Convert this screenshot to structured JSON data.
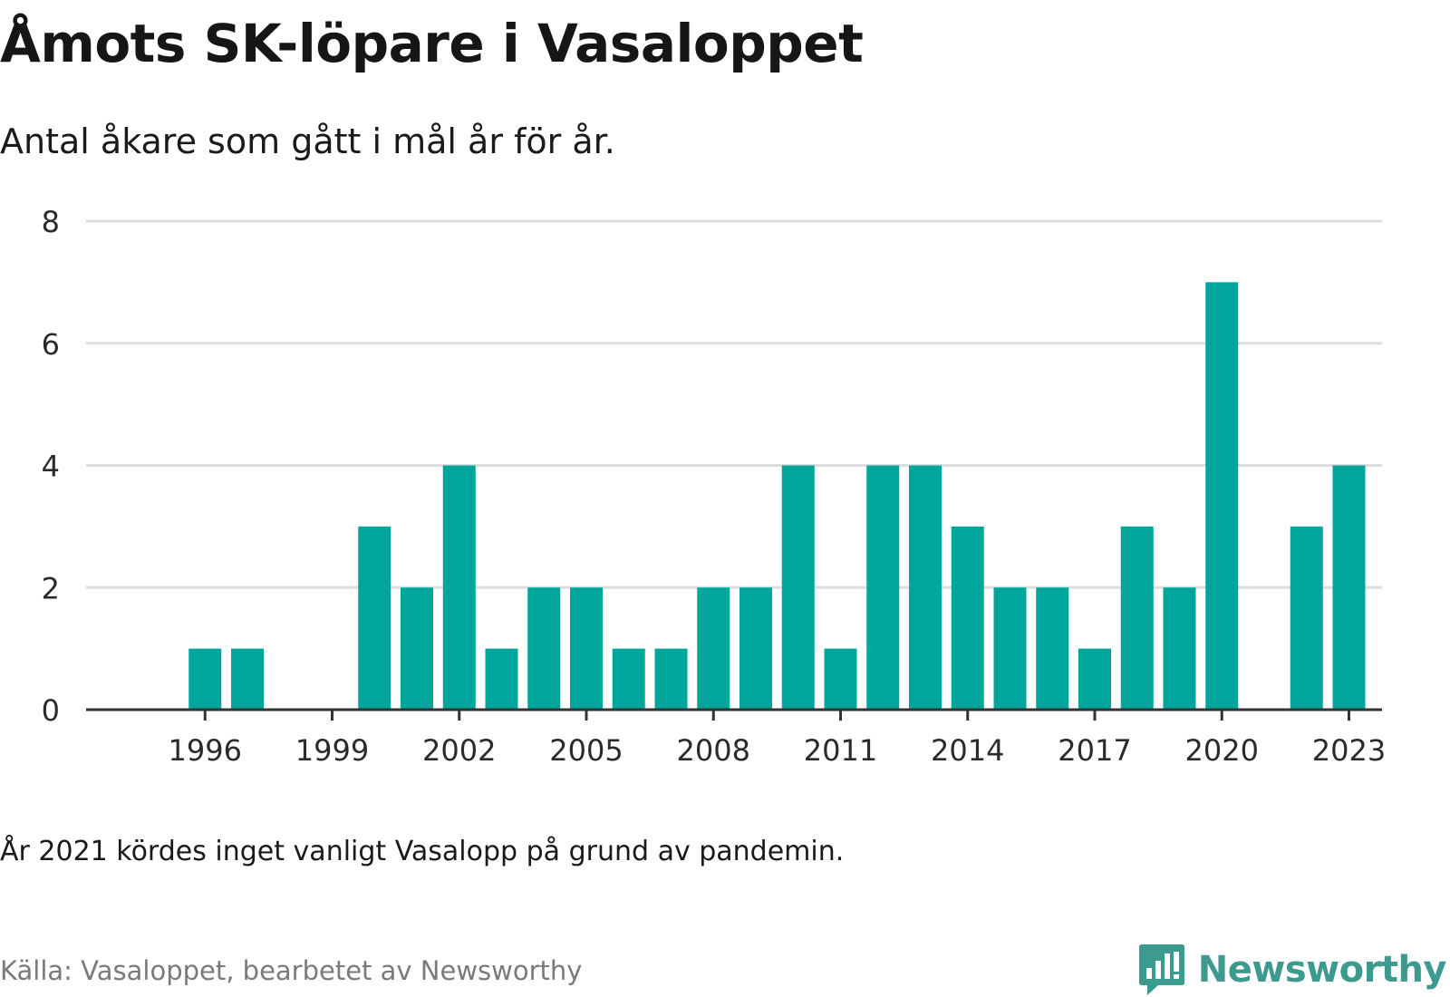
{
  "header": {
    "title": "Åmots SK-löpare i Vasaloppet",
    "subtitle": "Antal åkare som gått i mål år för år."
  },
  "footer": {
    "note": "År 2021 kördes inget vanligt Vasalopp på grund av pandemin.",
    "source": "Källa: Vasaloppet, bearbetet av Newsworthy",
    "brand": "Newsworthy"
  },
  "colors": {
    "bar": "#00a59b",
    "grid": "#dddddd",
    "axis": "#333333",
    "brand": "#3d9a8e"
  },
  "chart_data": {
    "type": "bar",
    "categories": [
      1995,
      1996,
      1997,
      1998,
      1999,
      2000,
      2001,
      2002,
      2003,
      2004,
      2005,
      2006,
      2007,
      2008,
      2009,
      2010,
      2011,
      2012,
      2013,
      2014,
      2015,
      2016,
      2017,
      2018,
      2019,
      2020,
      2021,
      2022,
      2023
    ],
    "values": [
      0,
      1,
      1,
      0,
      0,
      3,
      2,
      4,
      1,
      2,
      2,
      1,
      1,
      2,
      2,
      4,
      1,
      4,
      4,
      3,
      2,
      2,
      1,
      3,
      2,
      7,
      0,
      3,
      4
    ],
    "title": "Åmots SK-löpare i Vasaloppet",
    "xlabel": "",
    "ylabel": "",
    "ylim": [
      0,
      8
    ],
    "yticks": [
      0,
      2,
      4,
      6,
      8
    ],
    "xticks": [
      1996,
      1999,
      2002,
      2005,
      2008,
      2011,
      2014,
      2017,
      2020,
      2023
    ],
    "grid": true
  }
}
